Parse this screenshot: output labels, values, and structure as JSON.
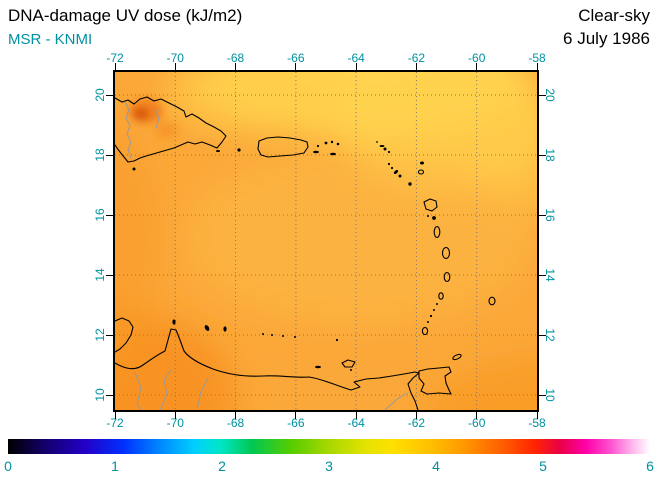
{
  "header": {
    "title": "DNA-damage UV dose (kJ/m2)",
    "source": "MSR - KNMI",
    "condition": "Clear-sky",
    "date": "6 July 1986"
  },
  "axes": {
    "lon_ticks": [
      "-72",
      "-70",
      "-68",
      "-66",
      "-64",
      "-62",
      "-60",
      "-58"
    ],
    "lat_ticks": [
      "20",
      "18",
      "16",
      "14",
      "12",
      "10"
    ]
  },
  "colorbar": {
    "ticks": [
      "0",
      "1",
      "2",
      "3",
      "4",
      "5",
      "6"
    ],
    "gradient": [
      [
        "0%",
        "#000000"
      ],
      [
        "6%",
        "#14006E"
      ],
      [
        "12%",
        "#2400C8"
      ],
      [
        "18%",
        "#0030FF"
      ],
      [
        "24%",
        "#008CFF"
      ],
      [
        "29%",
        "#00CFFF"
      ],
      [
        "33%",
        "#00E6C8"
      ],
      [
        "38%",
        "#00C853"
      ],
      [
        "44%",
        "#55CC00"
      ],
      [
        "50%",
        "#A8D800"
      ],
      [
        "56%",
        "#E6E300"
      ],
      [
        "60%",
        "#FFE000"
      ],
      [
        "66%",
        "#FFBE00"
      ],
      [
        "71%",
        "#FF9800"
      ],
      [
        "77%",
        "#FF5E00"
      ],
      [
        "82%",
        "#FF2400"
      ],
      [
        "86%",
        "#EA0048"
      ],
      [
        "90%",
        "#FF00A8"
      ],
      [
        "94%",
        "#FF55D2"
      ],
      [
        "97%",
        "#FFB0EA"
      ],
      [
        "100%",
        "#FFFFFF"
      ]
    ]
  },
  "colors": {
    "tick_label": "#0091A0",
    "title": "#000000",
    "map_base": "#FBA83A",
    "map_yellow_patch": "#FFD24E",
    "map_dark_spot": "#D4500C",
    "coastline": "#000000",
    "grid": "#7A7A7A"
  },
  "chart_data": {
    "type": "heatmap",
    "title": "DNA-damage UV dose (kJ/m2)",
    "condition": "Clear-sky",
    "date": "6 July 1986",
    "source": "MSR - KNMI",
    "lon_ticks": [
      -72,
      -70,
      -68,
      -66,
      -64,
      -62,
      -60,
      -58
    ],
    "lat_ticks": [
      20,
      18,
      16,
      14,
      12,
      10
    ],
    "colorbar_range": [
      0,
      6
    ],
    "colorbar_unit": "kJ/m2",
    "field_estimates": {
      "typical_dose": 4.2,
      "north_center_minimum": 3.8,
      "southwest_corner_maximum": 4.5,
      "hispaniola_local_maximum": 4.8
    },
    "region": "Caribbean (Greater and Lesser Antilles, northern South America)"
  }
}
